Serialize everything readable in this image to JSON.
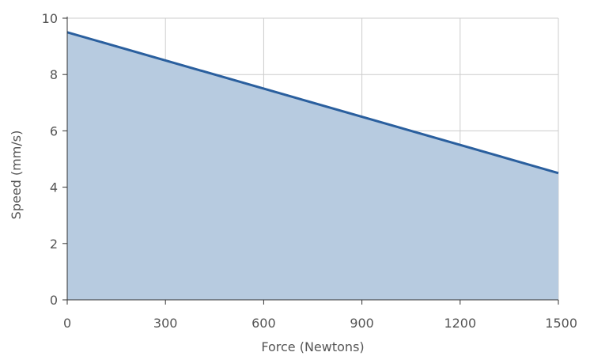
{
  "chart_data": {
    "type": "area",
    "title": "",
    "xlabel": "Force (Newtons)",
    "ylabel": "Speed (mm/s)",
    "x": [
      0,
      1500
    ],
    "series": [
      {
        "values": [
          9.5,
          4.5
        ]
      }
    ],
    "xlim": [
      0,
      1500
    ],
    "ylim": [
      0,
      10
    ],
    "x_ticks": [
      0,
      300,
      600,
      900,
      1200,
      1500
    ],
    "y_ticks": [
      0,
      2,
      4,
      6,
      8,
      10
    ],
    "x_tick_labels": [
      "0",
      "300",
      "600",
      "900",
      "1200",
      "1500"
    ],
    "y_tick_labels": [
      "0",
      "2",
      "4",
      "6",
      "8",
      "10"
    ],
    "grid": true,
    "legend": "none",
    "colors": {
      "line": "#2a5f9e",
      "fill": "#b7cbe0",
      "grid": "#cccccc",
      "axis": "#333333",
      "text": "#555555"
    }
  }
}
